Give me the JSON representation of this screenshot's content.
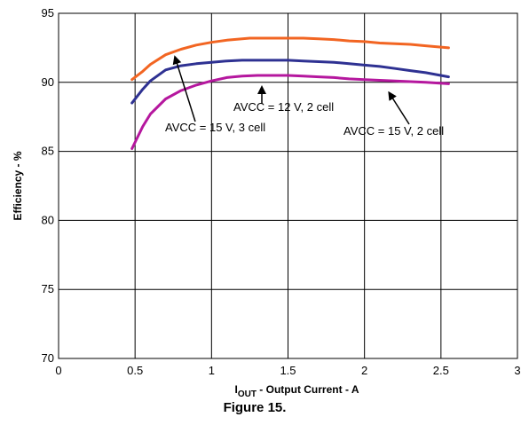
{
  "chart_data": {
    "type": "line",
    "title": "",
    "caption": "Figure 15.",
    "xlabel": {
      "main": "I",
      "sub": "OUT",
      "rest": " - Output Current - A"
    },
    "ylabel": "Efficiency - %",
    "xlim": [
      0,
      3
    ],
    "ylim": [
      70,
      95
    ],
    "xticks": [
      0,
      0.5,
      1,
      1.5,
      2,
      2.5,
      3
    ],
    "xtick_labels": [
      "0",
      "0.5",
      "1",
      "1.5",
      "2",
      "2.5",
      "3"
    ],
    "yticks": [
      70,
      75,
      80,
      85,
      90,
      95
    ],
    "ytick_labels": [
      "70",
      "75",
      "80",
      "85",
      "90",
      "95"
    ],
    "grid": true,
    "series": [
      {
        "name": "AVCC = 12 V, 2 cell",
        "color": "#f26522",
        "x": [
          0.48,
          0.55,
          0.6,
          0.7,
          0.8,
          0.9,
          1.0,
          1.1,
          1.2,
          1.25,
          1.3,
          1.4,
          1.5,
          1.6,
          1.7,
          1.8,
          1.9,
          2.0,
          2.1,
          2.2,
          2.3,
          2.4,
          2.55
        ],
        "values": [
          90.2,
          90.8,
          91.3,
          92.0,
          92.4,
          92.7,
          92.9,
          93.05,
          93.15,
          93.2,
          93.2,
          93.2,
          93.2,
          93.2,
          93.15,
          93.1,
          93.0,
          92.95,
          92.85,
          92.8,
          92.75,
          92.65,
          92.5
        ]
      },
      {
        "name": "AVCC = 15 V, 3 cell",
        "color": "#2e3192",
        "x": [
          0.48,
          0.55,
          0.6,
          0.7,
          0.8,
          0.9,
          1.0,
          1.1,
          1.2,
          1.3,
          1.4,
          1.5,
          1.6,
          1.7,
          1.8,
          1.9,
          2.0,
          2.1,
          2.2,
          2.3,
          2.4,
          2.55
        ],
        "values": [
          88.5,
          89.5,
          90.1,
          90.9,
          91.2,
          91.35,
          91.45,
          91.55,
          91.6,
          91.6,
          91.6,
          91.6,
          91.55,
          91.5,
          91.45,
          91.35,
          91.25,
          91.15,
          91.0,
          90.85,
          90.7,
          90.4
        ]
      },
      {
        "name": "AVCC = 15 V, 2 cell",
        "color": "#b5179e",
        "x": [
          0.48,
          0.55,
          0.6,
          0.7,
          0.8,
          0.9,
          1.0,
          1.1,
          1.2,
          1.3,
          1.4,
          1.5,
          1.6,
          1.7,
          1.8,
          1.9,
          2.0,
          2.1,
          2.2,
          2.3,
          2.4,
          2.55
        ],
        "values": [
          85.2,
          86.8,
          87.7,
          88.8,
          89.4,
          89.8,
          90.1,
          90.35,
          90.45,
          90.5,
          90.5,
          90.5,
          90.45,
          90.4,
          90.35,
          90.25,
          90.2,
          90.15,
          90.1,
          90.05,
          90.0,
          89.9
        ]
      }
    ],
    "annotations": [
      {
        "text": "AVCC = 12 V, 2 cell",
        "series": 0
      },
      {
        "text": "AVCC = 15 V, 3 cell",
        "series": 1
      },
      {
        "text": "AVCC = 15 V, 2 cell",
        "series": 2
      }
    ]
  }
}
